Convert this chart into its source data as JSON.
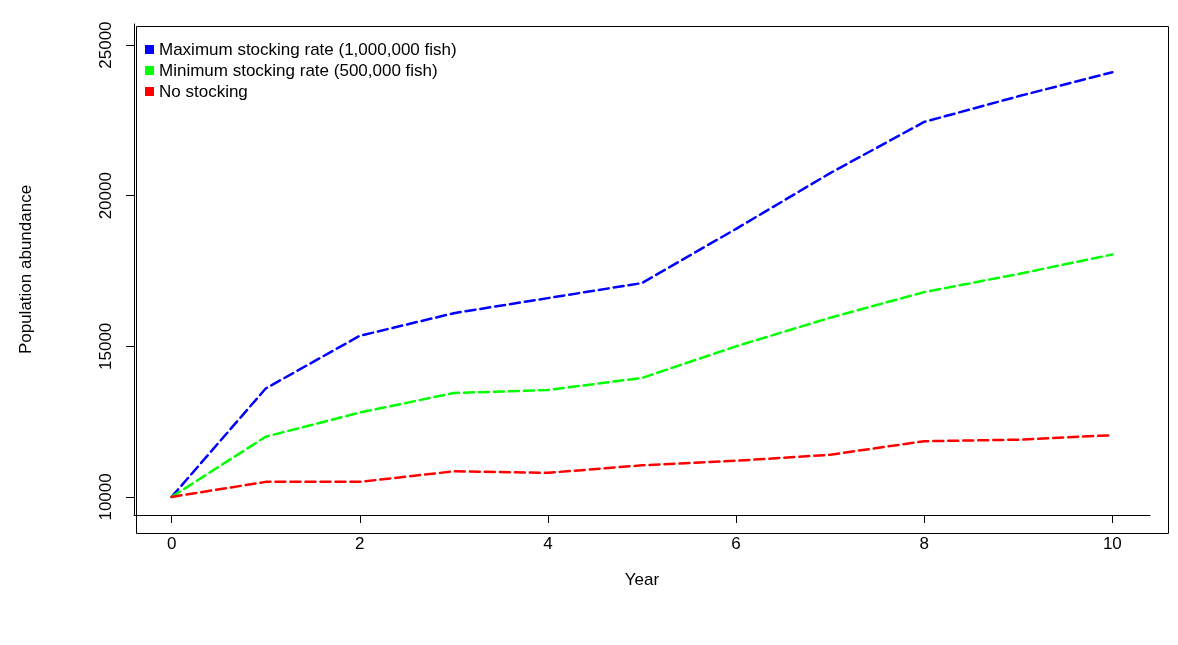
{
  "chart_data": {
    "type": "line",
    "xlabel": "Year",
    "ylabel": "Population abundance",
    "x": [
      0,
      1,
      2,
      3,
      4,
      5,
      6,
      7,
      8,
      9,
      10
    ],
    "series": [
      {
        "name": "Maximum stocking rate (1,000,000 fish)",
        "color": "#0000ff",
        "values": [
          10000,
          13600,
          15350,
          16100,
          16600,
          17100,
          18900,
          20750,
          22450,
          23300,
          24100
        ]
      },
      {
        "name": "Minimum stocking rate (500,000 fish)",
        "color": "#00ff00",
        "values": [
          10000,
          12000,
          12800,
          13450,
          13550,
          13950,
          15000,
          15950,
          16800,
          17400,
          18050
        ]
      },
      {
        "name": "No stocking",
        "color": "#ff0000",
        "values": [
          10000,
          10500,
          10500,
          10850,
          10800,
          11050,
          11200,
          11400,
          11850,
          11900,
          12050
        ]
      }
    ],
    "xlim": [
      -0.4,
      10.4
    ],
    "xticks": [
      0,
      2,
      4,
      6,
      8,
      10
    ],
    "ylim": [
      9400,
      25700
    ],
    "yticks": [
      10000,
      15000,
      20000,
      25000
    ],
    "grid": false,
    "legend": "top left",
    "marker": "none",
    "line_style": "dashed"
  }
}
